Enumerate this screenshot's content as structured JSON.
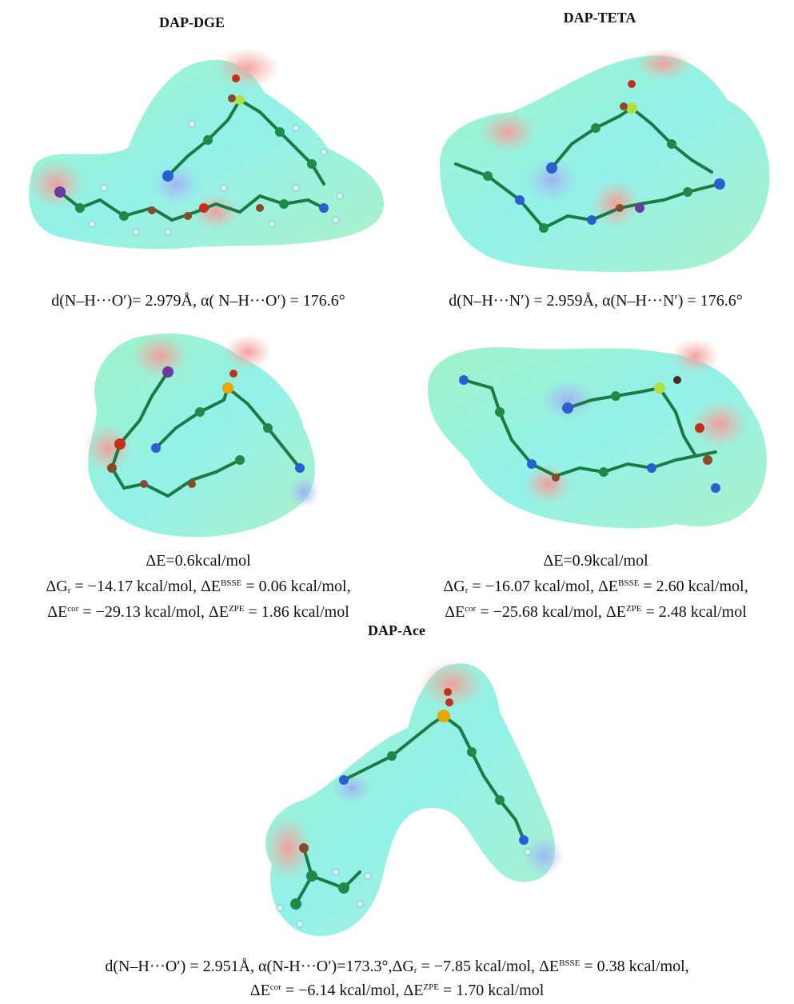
{
  "panels": {
    "dge": {
      "title": "DAP-DGE",
      "geom": "d(N–H···O′)= 2.979Å,  α( N–H···O′) = 176.6°",
      "dE": "ΔE=0.6kcal/mol",
      "dGr": "−14.17 kcal/mol",
      "dEbsse": "0.06 kcal/mol",
      "dEcor": "−29.13 kcal/mol",
      "dEzpe": "1.86 kcal/mol"
    },
    "teta": {
      "title": "DAP-TETA",
      "geom": "d(N–H···N′) = 2.959Å,  α(N–H···N′) = 176.6°",
      "dE": "ΔE=0.9kcal/mol",
      "dGr": "−16.07 kcal/mol",
      "dEbsse": "2.60 kcal/mol",
      "dEcor": "−25.68 kcal/mol",
      "dEzpe": "2.48 kcal/mol"
    },
    "ace": {
      "title": "DAP-Ace",
      "geom": "d(N–H···O′) = 2.951Å,  α(N-H···O′)=173.3°,",
      "dGr": "−7.85 kcal/mol",
      "dEbsse": "0.38 kcal/mol",
      "dEcor": "−6.14 kcal/mol",
      "dEzpe": "1.70 kcal/mol"
    }
  },
  "symbols": {
    "dG": "ΔG",
    "dE": "ΔE",
    "r": "r",
    "bsse": "BSSE",
    "cor": "cor",
    "zpe": "ZPE",
    "eq": " = ",
    "sep": ", "
  },
  "colors": {
    "surface_green": "#8ff0b8",
    "surface_cyan": "#8ef0ee",
    "surface_red": "#f4a3a3",
    "surface_blue": "#a8b8f4",
    "carbon": "#1e8a4a",
    "nitrogen": "#2a5fd0",
    "oxygen": "#c0301a",
    "sulfur": "#e6a800",
    "hydrogen": "#bfeef0"
  }
}
